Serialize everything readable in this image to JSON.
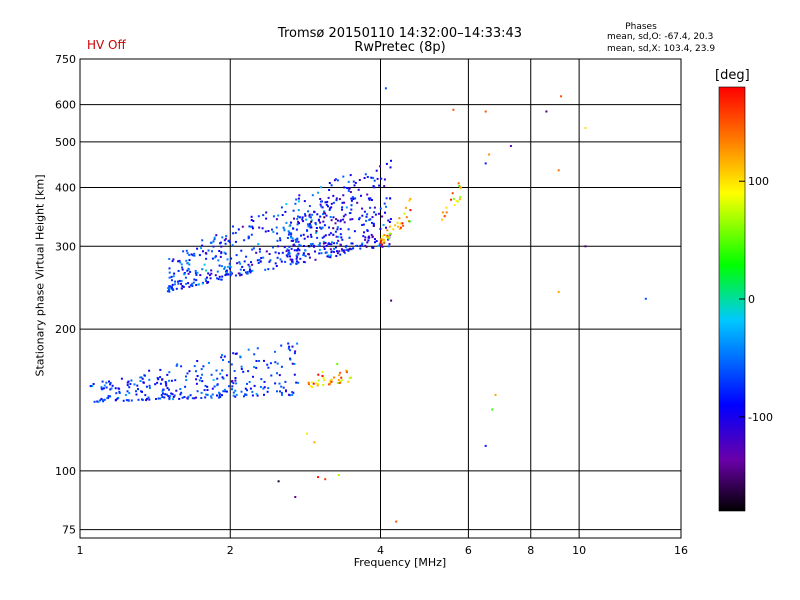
{
  "title": "Tromsø 20150110 14:32:00–14:33:43",
  "subtitle": "RwPretec (8p)",
  "hv_status": "HV Off",
  "phases": {
    "title": "Phases",
    "o_line": "mean, sd,O: -67.4, 20.3",
    "x_line": "mean, sd,X: 103.4, 23.9"
  },
  "colorbar": {
    "label": "[deg]",
    "ticks": [
      {
        "v": 100,
        "label": "100"
      },
      {
        "v": 0,
        "label": "0"
      },
      {
        "v": -100,
        "label": "-100"
      }
    ],
    "vmin": -180,
    "vmax": 180
  },
  "chart_data": {
    "type": "scatter",
    "xlabel": "Frequency [MHz]",
    "ylabel": "Stationary phase Virtual Height [km]",
    "xscale": "log",
    "yscale": "log",
    "xlim": [
      1,
      16
    ],
    "ylim": [
      72,
      750
    ],
    "xticks": [
      1,
      2,
      4,
      6,
      8,
      10,
      16
    ],
    "xtick_labels": [
      "1",
      "2",
      "4",
      "6",
      "8",
      "10",
      "16"
    ],
    "yticks": [
      75,
      100,
      200,
      300,
      400,
      500,
      600,
      750
    ],
    "ytick_labels": [
      "75",
      "100",
      "200",
      "300",
      "400",
      "500",
      "600",
      "750"
    ],
    "grid": true,
    "groups": [
      {
        "name": "f-lower",
        "x_range": [
          1.5,
          3.5
        ],
        "h_start": 240,
        "h_end": 290,
        "h_spread": 140,
        "phase": -75,
        "phase_sd": 25,
        "count": 420
      },
      {
        "name": "f-upper",
        "x_range": [
          2.6,
          4.2
        ],
        "h_start": 285,
        "h_end": 300,
        "h_spread": 160,
        "phase": -95,
        "phase_sd": 30,
        "count": 260
      },
      {
        "name": "e-lower",
        "x_range": [
          1.05,
          2.75
        ],
        "h_start": 140,
        "h_end": 145,
        "h_spread": 45,
        "phase": -75,
        "phase_sd": 22,
        "count": 300
      },
      {
        "name": "x-e",
        "x_range": [
          2.85,
          3.5
        ],
        "h_start": 150,
        "h_end": 155,
        "h_spread": 20,
        "phase": 115,
        "phase_sd": 35,
        "count": 40
      },
      {
        "name": "x-f",
        "x_range": [
          4.0,
          4.6
        ],
        "h_start": 300,
        "h_end": 340,
        "h_spread": 40,
        "phase": 120,
        "phase_sd": 40,
        "count": 40
      },
      {
        "name": "x-f2",
        "x_range": [
          5.3,
          5.8
        ],
        "h_start": 340,
        "h_end": 380,
        "h_spread": 40,
        "phase": 110,
        "phase_sd": 30,
        "count": 18
      }
    ],
    "isolated": [
      [
        5.6,
        585,
        150
      ],
      [
        6.5,
        580,
        150
      ],
      [
        6.6,
        470,
        130
      ],
      [
        6.5,
        450,
        -80
      ],
      [
        7.3,
        490,
        -130
      ],
      [
        8.6,
        580,
        -150
      ],
      [
        9.2,
        625,
        150
      ],
      [
        9.1,
        435,
        140
      ],
      [
        9.1,
        240,
        120
      ],
      [
        10.3,
        535,
        100
      ],
      [
        10.3,
        300,
        -150
      ],
      [
        13.6,
        232,
        -60
      ],
      [
        6.5,
        113,
        -80
      ],
      [
        6.7,
        135,
        40
      ],
      [
        6.8,
        145,
        120
      ],
      [
        4.2,
        230,
        -150
      ],
      [
        2.5,
        95,
        -170
      ],
      [
        2.7,
        88,
        -140
      ],
      [
        3.0,
        97,
        180
      ],
      [
        3.1,
        96,
        160
      ],
      [
        3.3,
        98,
        70
      ],
      [
        4.3,
        78,
        150
      ],
      [
        2.85,
        120,
        100
      ],
      [
        2.95,
        115,
        120
      ],
      [
        4.1,
        650,
        -60
      ]
    ]
  }
}
